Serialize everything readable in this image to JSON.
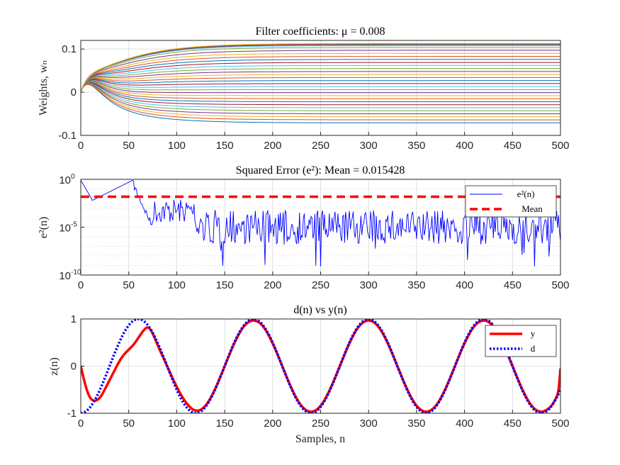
{
  "chart_data": [
    {
      "type": "line",
      "title": "Filter coefficients: μ = 0.008",
      "xlabel": "",
      "ylabel": "Weights, wₙ",
      "xlim": [
        0,
        500
      ],
      "ylim": [
        -0.1,
        0.12
      ],
      "xticks": [
        "0",
        "50",
        "100",
        "150",
        "200",
        "250",
        "300",
        "350",
        "400",
        "450",
        "500"
      ],
      "yticks": [
        "-0.1",
        "0",
        "0.1"
      ],
      "grid": true,
      "series_count": 31,
      "final_weights": [
        -0.071,
        -0.064,
        -0.057,
        -0.05,
        -0.043,
        -0.036,
        -0.029,
        -0.022,
        -0.015,
        -0.008,
        -0.001,
        0.006,
        0.013,
        0.02,
        0.027,
        0.034,
        0.041,
        0.048,
        0.055,
        0.062,
        0.069,
        0.076,
        0.083,
        0.09,
        0.097,
        0.104,
        0.108,
        0.11,
        0.111,
        0.112,
        0.113
      ],
      "series_colors": [
        "#0072BD",
        "#D95319",
        "#EDB120",
        "#7E2F8E",
        "#77AC30",
        "#4DBEEE",
        "#A2142F"
      ]
    },
    {
      "type": "line",
      "title": "Squared Error (e²): Mean = 0.015428",
      "xlabel": "",
      "ylabel": "e²(n)",
      "xlim": [
        0,
        500
      ],
      "ylim": [
        1e-10,
        1
      ],
      "yscale": "log",
      "xticks": [
        "0",
        "50",
        "100",
        "150",
        "200",
        "250",
        "300",
        "350",
        "400",
        "450",
        "500"
      ],
      "ytick_base": [
        "10",
        "10",
        "10"
      ],
      "ytick_exp": [
        "0",
        "-5",
        "-10"
      ],
      "grid": true,
      "legend_placement": "top-right",
      "series": [
        {
          "name": "e²(n)",
          "color": "#0000FF",
          "style": "solid"
        },
        {
          "name": "Mean",
          "color": "#FF0000",
          "style": "dashed",
          "value": 0.015428
        }
      ]
    },
    {
      "type": "line",
      "title": "d(n) vs y(n)",
      "xlabel": "Samples, n",
      "ylabel": "z(n)",
      "xlim": [
        0,
        500
      ],
      "ylim": [
        -1,
        1
      ],
      "xticks": [
        "0",
        "50",
        "100",
        "150",
        "200",
        "250",
        "300",
        "350",
        "400",
        "450",
        "500"
      ],
      "yticks": [
        "-1",
        "0",
        "1"
      ],
      "grid": true,
      "legend_placement": "top-right",
      "series": [
        {
          "name": "y",
          "color": "#FF0000",
          "style": "solid"
        },
        {
          "name": "d",
          "color": "#0000FF",
          "style": "dotted"
        }
      ],
      "d_period": 120,
      "d_phase_note_x0": -1,
      "y_points": [
        [
          0,
          0
        ],
        [
          5,
          -0.45
        ],
        [
          10,
          -0.7
        ],
        [
          15,
          -0.75
        ],
        [
          20,
          -0.68
        ],
        [
          25,
          -0.5
        ],
        [
          30,
          -0.3
        ],
        [
          35,
          -0.1
        ],
        [
          40,
          0.1
        ],
        [
          45,
          0.25
        ],
        [
          50,
          0.35
        ],
        [
          55,
          0.45
        ],
        [
          60,
          0.6
        ],
        [
          65,
          0.75
        ],
        [
          70,
          0.85
        ],
        [
          75,
          0.7
        ],
        [
          80,
          0.45
        ],
        [
          90,
          0.0
        ],
        [
          100,
          -0.45
        ],
        [
          110,
          -0.8
        ],
        [
          120,
          -0.98
        ],
        [
          130,
          -0.87
        ],
        [
          140,
          -0.5
        ],
        [
          150,
          0.0
        ],
        [
          160,
          0.5
        ],
        [
          170,
          0.87
        ],
        [
          180,
          1.0
        ],
        [
          190,
          0.87
        ],
        [
          200,
          0.5
        ],
        [
          210,
          0.0
        ],
        [
          220,
          -0.5
        ],
        [
          230,
          -0.87
        ],
        [
          240,
          -1.0
        ],
        [
          250,
          -0.87
        ],
        [
          260,
          -0.5
        ],
        [
          270,
          0.0
        ],
        [
          280,
          0.5
        ],
        [
          290,
          0.87
        ],
        [
          300,
          1.0
        ],
        [
          310,
          0.87
        ],
        [
          320,
          0.5
        ],
        [
          330,
          0.0
        ],
        [
          340,
          -0.5
        ],
        [
          350,
          -0.87
        ],
        [
          360,
          -1.0
        ],
        [
          370,
          -0.87
        ],
        [
          380,
          -0.5
        ],
        [
          390,
          0.0
        ],
        [
          400,
          0.5
        ],
        [
          410,
          0.87
        ],
        [
          420,
          1.0
        ],
        [
          430,
          0.87
        ],
        [
          440,
          0.5
        ],
        [
          450,
          0.0
        ],
        [
          460,
          -0.5
        ],
        [
          470,
          -0.87
        ],
        [
          480,
          -1.0
        ],
        [
          490,
          -0.87
        ],
        [
          495,
          -0.7
        ],
        [
          498,
          -0.55
        ],
        [
          500,
          -0.05
        ]
      ]
    }
  ]
}
